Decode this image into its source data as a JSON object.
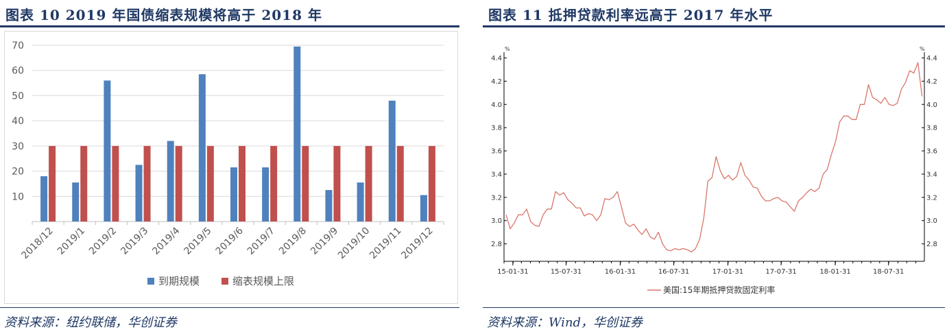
{
  "left": {
    "title": "图表 10   2019 年国债缩表规模将高于 2018 年",
    "source": "资料来源：纽约联储，华创证券"
  },
  "right": {
    "title": "图表 11   抵押贷款利率远高于 2017 年水平",
    "source": "资料来源：Wind，华创证券"
  },
  "colors": {
    "accent": "#1f3864",
    "blue": "#4f81bd",
    "red": "#c0504d",
    "line": "#d9766b"
  },
  "chart_data": [
    {
      "type": "bar",
      "categories": [
        "2018/12",
        "2019/1",
        "2019/2",
        "2019/3",
        "2019/4",
        "2019/5",
        "2019/6",
        "2019/7",
        "2019/8",
        "2019/9",
        "2019/10",
        "2019/11",
        "2019/12"
      ],
      "series": [
        {
          "name": "到期规模",
          "values": [
            18,
            15.5,
            56,
            22.5,
            32,
            58.5,
            21.5,
            21.5,
            69.5,
            12.5,
            15.5,
            48,
            10.5
          ]
        },
        {
          "name": "缩表规模上限",
          "values": [
            30,
            30,
            30,
            30,
            30,
            30,
            30,
            30,
            30,
            30,
            30,
            30,
            30
          ]
        }
      ],
      "yticks": [
        "10",
        "20",
        "30",
        "40",
        "50",
        "60",
        "70"
      ],
      "ylim": [
        0,
        70
      ],
      "legend": "bottom",
      "grid": true
    },
    {
      "type": "line",
      "unit_left": "%",
      "unit_right": "%",
      "yticks": [
        "2.8",
        "3.0",
        "3.2",
        "3.4",
        "3.6",
        "3.8",
        "4.0",
        "4.2",
        "4.4"
      ],
      "ylim": [
        2.65,
        4.45
      ],
      "xticks": [
        "15-01-31",
        "15-07-31",
        "16-01-31",
        "16-07-31",
        "17-01-31",
        "17-07-31",
        "18-01-31",
        "18-07-31"
      ],
      "x_start": "2015-01-01",
      "x_end": "2018-11-30",
      "legend": "bottom",
      "series": [
        {
          "name": "美国:15年期抵押贷款固定利率",
          "points": [
            [
              "2015-01-08",
              3.05
            ],
            [
              "2015-01-22",
              2.93
            ],
            [
              "2015-02-05",
              2.98
            ],
            [
              "2015-02-19",
              3.05
            ],
            [
              "2015-03-05",
              3.05
            ],
            [
              "2015-03-19",
              3.1
            ],
            [
              "2015-04-02",
              2.99
            ],
            [
              "2015-04-16",
              2.96
            ],
            [
              "2015-04-30",
              2.95
            ],
            [
              "2015-05-14",
              3.05
            ],
            [
              "2015-05-28",
              3.1
            ],
            [
              "2015-06-11",
              3.1
            ],
            [
              "2015-06-25",
              3.25
            ],
            [
              "2015-07-09",
              3.22
            ],
            [
              "2015-07-23",
              3.24
            ],
            [
              "2015-08-06",
              3.18
            ],
            [
              "2015-08-20",
              3.15
            ],
            [
              "2015-09-03",
              3.11
            ],
            [
              "2015-09-17",
              3.11
            ],
            [
              "2015-10-01",
              3.04
            ],
            [
              "2015-10-15",
              3.06
            ],
            [
              "2015-10-29",
              3.05
            ],
            [
              "2015-11-12",
              3.0
            ],
            [
              "2015-11-26",
              3.05
            ],
            [
              "2015-12-10",
              3.19
            ],
            [
              "2015-12-24",
              3.18
            ],
            [
              "2016-01-07",
              3.2
            ],
            [
              "2016-01-21",
              3.25
            ],
            [
              "2016-02-04",
              3.12
            ],
            [
              "2016-02-18",
              2.98
            ],
            [
              "2016-03-03",
              2.95
            ],
            [
              "2016-03-17",
              2.97
            ],
            [
              "2016-03-31",
              2.92
            ],
            [
              "2016-04-14",
              2.88
            ],
            [
              "2016-04-28",
              2.93
            ],
            [
              "2016-05-12",
              2.86
            ],
            [
              "2016-05-26",
              2.84
            ],
            [
              "2016-06-09",
              2.9
            ],
            [
              "2016-06-23",
              2.8
            ],
            [
              "2016-07-07",
              2.75
            ],
            [
              "2016-07-21",
              2.74
            ],
            [
              "2016-08-04",
              2.76
            ],
            [
              "2016-08-18",
              2.75
            ],
            [
              "2016-09-01",
              2.76
            ],
            [
              "2016-09-15",
              2.75
            ],
            [
              "2016-09-29",
              2.73
            ],
            [
              "2016-10-13",
              2.76
            ],
            [
              "2016-10-27",
              2.84
            ],
            [
              "2016-11-10",
              3.02
            ],
            [
              "2016-11-24",
              3.34
            ],
            [
              "2016-12-08",
              3.37
            ],
            [
              "2016-12-22",
              3.55
            ],
            [
              "2017-01-05",
              3.43
            ],
            [
              "2017-01-19",
              3.36
            ],
            [
              "2017-02-02",
              3.39
            ],
            [
              "2017-02-16",
              3.35
            ],
            [
              "2017-03-02",
              3.38
            ],
            [
              "2017-03-16",
              3.5
            ],
            [
              "2017-03-30",
              3.39
            ],
            [
              "2017-04-13",
              3.35
            ],
            [
              "2017-04-27",
              3.29
            ],
            [
              "2017-05-11",
              3.28
            ],
            [
              "2017-05-25",
              3.21
            ],
            [
              "2017-06-08",
              3.17
            ],
            [
              "2017-06-22",
              3.17
            ],
            [
              "2017-07-06",
              3.19
            ],
            [
              "2017-07-20",
              3.2
            ],
            [
              "2017-08-03",
              3.17
            ],
            [
              "2017-08-17",
              3.16
            ],
            [
              "2017-08-31",
              3.12
            ],
            [
              "2017-09-14",
              3.08
            ],
            [
              "2017-09-28",
              3.17
            ],
            [
              "2017-10-12",
              3.2
            ],
            [
              "2017-10-26",
              3.24
            ],
            [
              "2017-11-09",
              3.27
            ],
            [
              "2017-11-23",
              3.25
            ],
            [
              "2017-12-07",
              3.28
            ],
            [
              "2017-12-21",
              3.4
            ],
            [
              "2018-01-04",
              3.44
            ],
            [
              "2018-01-18",
              3.57
            ],
            [
              "2018-02-01",
              3.68
            ],
            [
              "2018-02-15",
              3.85
            ],
            [
              "2018-03-01",
              3.9
            ],
            [
              "2018-03-15",
              3.9
            ],
            [
              "2018-03-29",
              3.87
            ],
            [
              "2018-04-12",
              3.87
            ],
            [
              "2018-04-26",
              4.0
            ],
            [
              "2018-05-10",
              4.0
            ],
            [
              "2018-05-24",
              4.17
            ],
            [
              "2018-06-07",
              4.06
            ],
            [
              "2018-06-21",
              4.04
            ],
            [
              "2018-07-05",
              4.01
            ],
            [
              "2018-07-19",
              4.06
            ],
            [
              "2018-08-02",
              4.0
            ],
            [
              "2018-08-16",
              3.99
            ],
            [
              "2018-08-30",
              4.01
            ],
            [
              "2018-09-13",
              4.13
            ],
            [
              "2018-09-27",
              4.19
            ],
            [
              "2018-10-11",
              4.29
            ],
            [
              "2018-10-25",
              4.27
            ],
            [
              "2018-11-08",
              4.36
            ],
            [
              "2018-11-22",
              4.07
            ]
          ]
        }
      ]
    }
  ]
}
